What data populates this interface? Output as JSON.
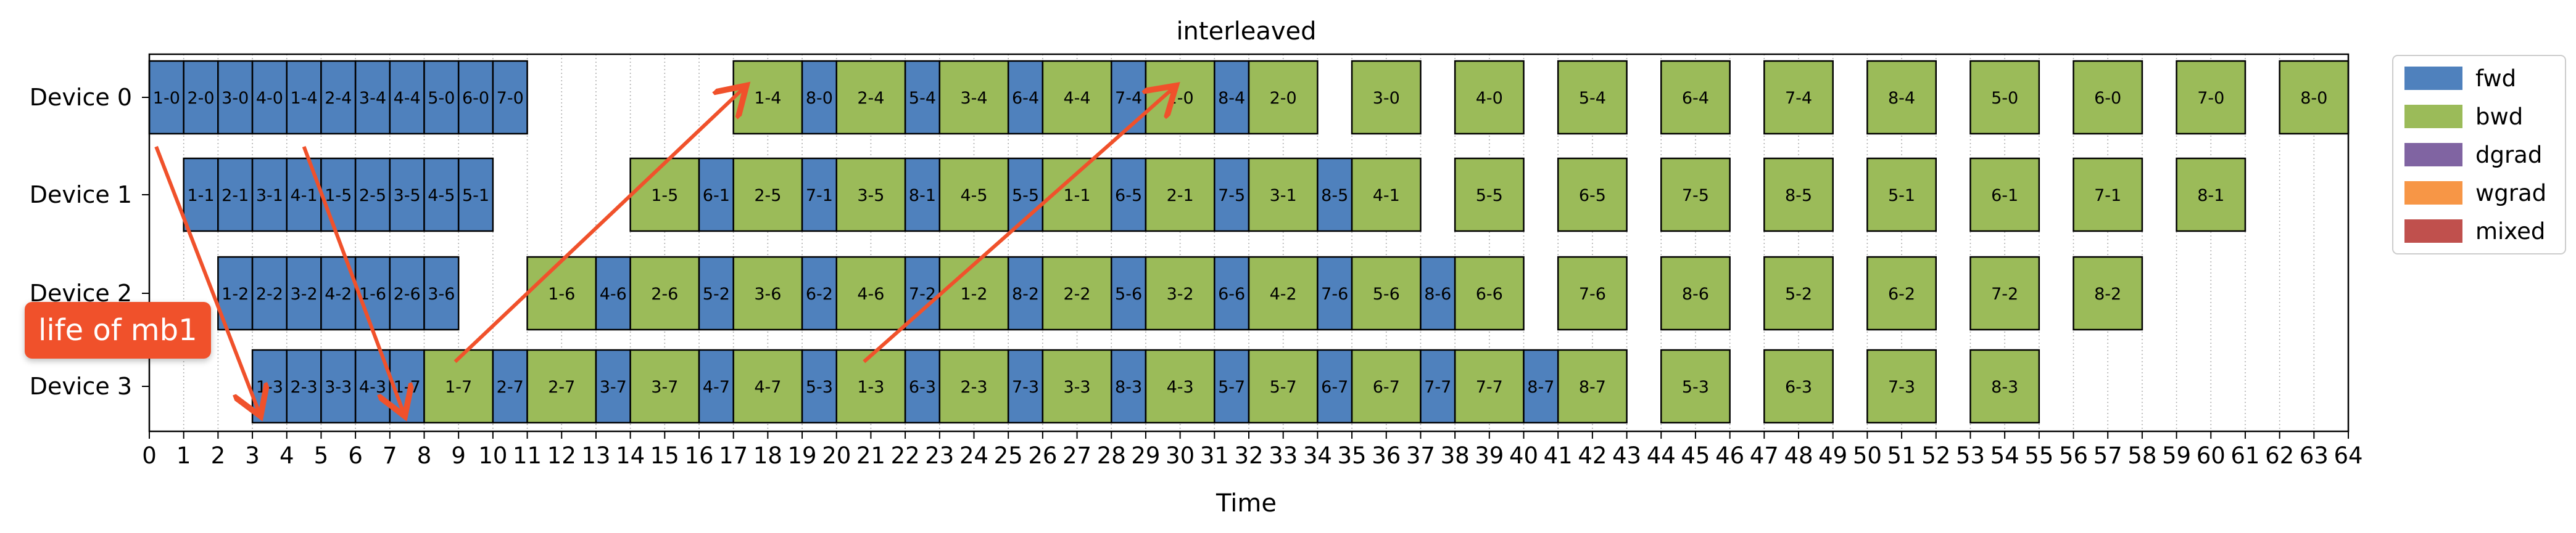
{
  "chart_data": {
    "type": "gantt",
    "title": "interleaved",
    "xlabel": "Time",
    "xlim": [
      0,
      64
    ],
    "x_ticks": [
      "0",
      "1",
      "2",
      "3",
      "4",
      "5",
      "6",
      "7",
      "8",
      "9",
      "10",
      "11",
      "12",
      "13",
      "14",
      "15",
      "16",
      "17",
      "18",
      "19",
      "20",
      "21",
      "22",
      "23",
      "24",
      "25",
      "26",
      "27",
      "28",
      "29",
      "30",
      "31",
      "32",
      "33",
      "34",
      "35",
      "36",
      "37",
      "38",
      "39",
      "40",
      "41",
      "42",
      "43",
      "44",
      "45",
      "46",
      "47",
      "48",
      "49",
      "50",
      "51",
      "52",
      "53",
      "54",
      "55",
      "56",
      "57",
      "58",
      "59",
      "60",
      "61",
      "62",
      "63",
      "64"
    ],
    "grid": "vertical dotted at each time unit",
    "legend_placement": "outside-right",
    "legend": [
      {
        "name": "fwd",
        "color": "#4f81bd"
      },
      {
        "name": "bwd",
        "color": "#9bbb59"
      },
      {
        "name": "dgrad",
        "color": "#8064a2"
      },
      {
        "name": "wgrad",
        "color": "#f79646"
      },
      {
        "name": "mixed",
        "color": "#c0504d"
      }
    ],
    "devices": [
      {
        "name": "Device 0",
        "tasks": [
          {
            "label": "1-0",
            "start": 0,
            "end": 1,
            "type": "fwd"
          },
          {
            "label": "2-0",
            "start": 1,
            "end": 2,
            "type": "fwd"
          },
          {
            "label": "3-0",
            "start": 2,
            "end": 3,
            "type": "fwd"
          },
          {
            "label": "4-0",
            "start": 3,
            "end": 4,
            "type": "fwd"
          },
          {
            "label": "1-4",
            "start": 4,
            "end": 5,
            "type": "fwd"
          },
          {
            "label": "2-4",
            "start": 5,
            "end": 6,
            "type": "fwd"
          },
          {
            "label": "3-4",
            "start": 6,
            "end": 7,
            "type": "fwd"
          },
          {
            "label": "4-4",
            "start": 7,
            "end": 8,
            "type": "fwd"
          },
          {
            "label": "5-0",
            "start": 8,
            "end": 9,
            "type": "fwd"
          },
          {
            "label": "6-0",
            "start": 9,
            "end": 10,
            "type": "fwd"
          },
          {
            "label": "7-0",
            "start": 10,
            "end": 11,
            "type": "fwd"
          },
          {
            "label": "1-4",
            "start": 17,
            "end": 19,
            "type": "bwd"
          },
          {
            "label": "8-0",
            "start": 19,
            "end": 20,
            "type": "fwd"
          },
          {
            "label": "2-4",
            "start": 20,
            "end": 22,
            "type": "bwd"
          },
          {
            "label": "5-4",
            "start": 22,
            "end": 23,
            "type": "fwd"
          },
          {
            "label": "3-4",
            "start": 23,
            "end": 25,
            "type": "bwd"
          },
          {
            "label": "6-4",
            "start": 25,
            "end": 26,
            "type": "fwd"
          },
          {
            "label": "4-4",
            "start": 26,
            "end": 28,
            "type": "bwd"
          },
          {
            "label": "7-4",
            "start": 28,
            "end": 29,
            "type": "fwd"
          },
          {
            "label": "1-0",
            "start": 29,
            "end": 31,
            "type": "bwd"
          },
          {
            "label": "8-4",
            "start": 31,
            "end": 32,
            "type": "fwd"
          },
          {
            "label": "2-0",
            "start": 32,
            "end": 34,
            "type": "bwd"
          },
          {
            "label": "3-0",
            "start": 35,
            "end": 37,
            "type": "bwd"
          },
          {
            "label": "4-0",
            "start": 38,
            "end": 40,
            "type": "bwd"
          },
          {
            "label": "5-4",
            "start": 41,
            "end": 43,
            "type": "bwd"
          },
          {
            "label": "6-4",
            "start": 44,
            "end": 46,
            "type": "bwd"
          },
          {
            "label": "7-4",
            "start": 47,
            "end": 49,
            "type": "bwd"
          },
          {
            "label": "8-4",
            "start": 50,
            "end": 52,
            "type": "bwd"
          },
          {
            "label": "5-0",
            "start": 53,
            "end": 55,
            "type": "bwd"
          },
          {
            "label": "6-0",
            "start": 56,
            "end": 58,
            "type": "bwd"
          },
          {
            "label": "7-0",
            "start": 59,
            "end": 61,
            "type": "bwd"
          },
          {
            "label": "8-0",
            "start": 62,
            "end": 64,
            "type": "bwd"
          }
        ]
      },
      {
        "name": "Device 1",
        "tasks": [
          {
            "label": "1-1",
            "start": 1,
            "end": 2,
            "type": "fwd"
          },
          {
            "label": "2-1",
            "start": 2,
            "end": 3,
            "type": "fwd"
          },
          {
            "label": "3-1",
            "start": 3,
            "end": 4,
            "type": "fwd"
          },
          {
            "label": "4-1",
            "start": 4,
            "end": 5,
            "type": "fwd"
          },
          {
            "label": "1-5",
            "start": 5,
            "end": 6,
            "type": "fwd"
          },
          {
            "label": "2-5",
            "start": 6,
            "end": 7,
            "type": "fwd"
          },
          {
            "label": "3-5",
            "start": 7,
            "end": 8,
            "type": "fwd"
          },
          {
            "label": "4-5",
            "start": 8,
            "end": 9,
            "type": "fwd"
          },
          {
            "label": "5-1",
            "start": 9,
            "end": 10,
            "type": "fwd"
          },
          {
            "label": "1-5",
            "start": 14,
            "end": 16,
            "type": "bwd"
          },
          {
            "label": "6-1",
            "start": 16,
            "end": 17,
            "type": "fwd"
          },
          {
            "label": "2-5",
            "start": 17,
            "end": 19,
            "type": "bwd"
          },
          {
            "label": "7-1",
            "start": 19,
            "end": 20,
            "type": "fwd"
          },
          {
            "label": "3-5",
            "start": 20,
            "end": 22,
            "type": "bwd"
          },
          {
            "label": "8-1",
            "start": 22,
            "end": 23,
            "type": "fwd"
          },
          {
            "label": "4-5",
            "start": 23,
            "end": 25,
            "type": "bwd"
          },
          {
            "label": "5-5",
            "start": 25,
            "end": 26,
            "type": "fwd"
          },
          {
            "label": "1-1",
            "start": 26,
            "end": 28,
            "type": "bwd"
          },
          {
            "label": "6-5",
            "start": 28,
            "end": 29,
            "type": "fwd"
          },
          {
            "label": "2-1",
            "start": 29,
            "end": 31,
            "type": "bwd"
          },
          {
            "label": "7-5",
            "start": 31,
            "end": 32,
            "type": "fwd"
          },
          {
            "label": "3-1",
            "start": 32,
            "end": 34,
            "type": "bwd"
          },
          {
            "label": "8-5",
            "start": 34,
            "end": 35,
            "type": "fwd"
          },
          {
            "label": "4-1",
            "start": 35,
            "end": 37,
            "type": "bwd"
          },
          {
            "label": "5-5",
            "start": 38,
            "end": 40,
            "type": "bwd"
          },
          {
            "label": "6-5",
            "start": 41,
            "end": 43,
            "type": "bwd"
          },
          {
            "label": "7-5",
            "start": 44,
            "end": 46,
            "type": "bwd"
          },
          {
            "label": "8-5",
            "start": 47,
            "end": 49,
            "type": "bwd"
          },
          {
            "label": "5-1",
            "start": 50,
            "end": 52,
            "type": "bwd"
          },
          {
            "label": "6-1",
            "start": 53,
            "end": 55,
            "type": "bwd"
          },
          {
            "label": "7-1",
            "start": 56,
            "end": 58,
            "type": "bwd"
          },
          {
            "label": "8-1",
            "start": 59,
            "end": 61,
            "type": "bwd"
          }
        ]
      },
      {
        "name": "Device 2",
        "tasks": [
          {
            "label": "1-2",
            "start": 2,
            "end": 3,
            "type": "fwd"
          },
          {
            "label": "2-2",
            "start": 3,
            "end": 4,
            "type": "fwd"
          },
          {
            "label": "3-2",
            "start": 4,
            "end": 5,
            "type": "fwd"
          },
          {
            "label": "4-2",
            "start": 5,
            "end": 6,
            "type": "fwd"
          },
          {
            "label": "1-6",
            "start": 6,
            "end": 7,
            "type": "fwd"
          },
          {
            "label": "2-6",
            "start": 7,
            "end": 8,
            "type": "fwd"
          },
          {
            "label": "3-6",
            "start": 8,
            "end": 9,
            "type": "fwd"
          },
          {
            "label": "1-6",
            "start": 11,
            "end": 13,
            "type": "bwd"
          },
          {
            "label": "4-6",
            "start": 13,
            "end": 14,
            "type": "fwd"
          },
          {
            "label": "2-6",
            "start": 14,
            "end": 16,
            "type": "bwd"
          },
          {
            "label": "5-2",
            "start": 16,
            "end": 17,
            "type": "fwd"
          },
          {
            "label": "3-6",
            "start": 17,
            "end": 19,
            "type": "bwd"
          },
          {
            "label": "6-2",
            "start": 19,
            "end": 20,
            "type": "fwd"
          },
          {
            "label": "4-6",
            "start": 20,
            "end": 22,
            "type": "bwd"
          },
          {
            "label": "7-2",
            "start": 22,
            "end": 23,
            "type": "fwd"
          },
          {
            "label": "1-2",
            "start": 23,
            "end": 25,
            "type": "bwd"
          },
          {
            "label": "8-2",
            "start": 25,
            "end": 26,
            "type": "fwd"
          },
          {
            "label": "2-2",
            "start": 26,
            "end": 28,
            "type": "bwd"
          },
          {
            "label": "5-6",
            "start": 28,
            "end": 29,
            "type": "fwd"
          },
          {
            "label": "3-2",
            "start": 29,
            "end": 31,
            "type": "bwd"
          },
          {
            "label": "6-6",
            "start": 31,
            "end": 32,
            "type": "fwd"
          },
          {
            "label": "4-2",
            "start": 32,
            "end": 34,
            "type": "bwd"
          },
          {
            "label": "7-6",
            "start": 34,
            "end": 35,
            "type": "fwd"
          },
          {
            "label": "5-6",
            "start": 35,
            "end": 37,
            "type": "bwd"
          },
          {
            "label": "8-6",
            "start": 37,
            "end": 38,
            "type": "fwd"
          },
          {
            "label": "6-6",
            "start": 38,
            "end": 40,
            "type": "bwd"
          },
          {
            "label": "7-6",
            "start": 41,
            "end": 43,
            "type": "bwd"
          },
          {
            "label": "8-6",
            "start": 44,
            "end": 46,
            "type": "bwd"
          },
          {
            "label": "5-2",
            "start": 47,
            "end": 49,
            "type": "bwd"
          },
          {
            "label": "6-2",
            "start": 50,
            "end": 52,
            "type": "bwd"
          },
          {
            "label": "7-2",
            "start": 53,
            "end": 55,
            "type": "bwd"
          },
          {
            "label": "8-2",
            "start": 56,
            "end": 58,
            "type": "bwd"
          }
        ]
      },
      {
        "name": "Device 3",
        "tasks": [
          {
            "label": "1-3",
            "start": 3,
            "end": 4,
            "type": "fwd"
          },
          {
            "label": "2-3",
            "start": 4,
            "end": 5,
            "type": "fwd"
          },
          {
            "label": "3-3",
            "start": 5,
            "end": 6,
            "type": "fwd"
          },
          {
            "label": "4-3",
            "start": 6,
            "end": 7,
            "type": "fwd"
          },
          {
            "label": "1-7",
            "start": 7,
            "end": 8,
            "type": "fwd"
          },
          {
            "label": "1-7",
            "start": 8,
            "end": 10,
            "type": "bwd"
          },
          {
            "label": "2-7",
            "start": 10,
            "end": 11,
            "type": "fwd"
          },
          {
            "label": "2-7",
            "start": 11,
            "end": 13,
            "type": "bwd"
          },
          {
            "label": "3-7",
            "start": 13,
            "end": 14,
            "type": "fwd"
          },
          {
            "label": "3-7",
            "start": 14,
            "end": 16,
            "type": "bwd"
          },
          {
            "label": "4-7",
            "start": 16,
            "end": 17,
            "type": "fwd"
          },
          {
            "label": "4-7",
            "start": 17,
            "end": 19,
            "type": "bwd"
          },
          {
            "label": "5-3",
            "start": 19,
            "end": 20,
            "type": "fwd"
          },
          {
            "label": "1-3",
            "start": 20,
            "end": 22,
            "type": "bwd"
          },
          {
            "label": "6-3",
            "start": 22,
            "end": 23,
            "type": "fwd"
          },
          {
            "label": "2-3",
            "start": 23,
            "end": 25,
            "type": "bwd"
          },
          {
            "label": "7-3",
            "start": 25,
            "end": 26,
            "type": "fwd"
          },
          {
            "label": "3-3",
            "start": 26,
            "end": 28,
            "type": "bwd"
          },
          {
            "label": "8-3",
            "start": 28,
            "end": 29,
            "type": "fwd"
          },
          {
            "label": "4-3",
            "start": 29,
            "end": 31,
            "type": "bwd"
          },
          {
            "label": "5-7",
            "start": 31,
            "end": 32,
            "type": "fwd"
          },
          {
            "label": "5-7",
            "start": 32,
            "end": 34,
            "type": "bwd"
          },
          {
            "label": "6-7",
            "start": 34,
            "end": 35,
            "type": "fwd"
          },
          {
            "label": "6-7",
            "start": 35,
            "end": 37,
            "type": "bwd"
          },
          {
            "label": "7-7",
            "start": 37,
            "end": 38,
            "type": "fwd"
          },
          {
            "label": "7-7",
            "start": 38,
            "end": 40,
            "type": "bwd"
          },
          {
            "label": "8-7",
            "start": 40,
            "end": 41,
            "type": "fwd"
          },
          {
            "label": "8-7",
            "start": 41,
            "end": 43,
            "type": "bwd"
          },
          {
            "label": "5-3",
            "start": 44,
            "end": 46,
            "type": "bwd"
          },
          {
            "label": "6-3",
            "start": 47,
            "end": 49,
            "type": "bwd"
          },
          {
            "label": "7-3",
            "start": 50,
            "end": 52,
            "type": "bwd"
          },
          {
            "label": "8-3",
            "start": 53,
            "end": 55,
            "type": "bwd"
          }
        ]
      }
    ],
    "annotations": [
      {
        "type": "arrow",
        "color": "#f0512b",
        "from": {
          "device": 0,
          "time": 0.2
        },
        "to": {
          "device": 3,
          "time": 3.2
        }
      },
      {
        "type": "arrow",
        "color": "#f0512b",
        "from": {
          "device": 0,
          "time": 4.5
        },
        "to": {
          "device": 3,
          "time": 7.4
        }
      },
      {
        "type": "arrow",
        "color": "#f0512b",
        "from": {
          "device": 3,
          "time": 8.9
        },
        "to": {
          "device": 0,
          "time": 17.3
        }
      },
      {
        "type": "arrow",
        "color": "#f0512b",
        "from": {
          "device": 3,
          "time": 20.8
        },
        "to": {
          "device": 0,
          "time": 29.8
        }
      }
    ],
    "callout": {
      "text": "life of mb1",
      "color": "#f0512b"
    }
  }
}
